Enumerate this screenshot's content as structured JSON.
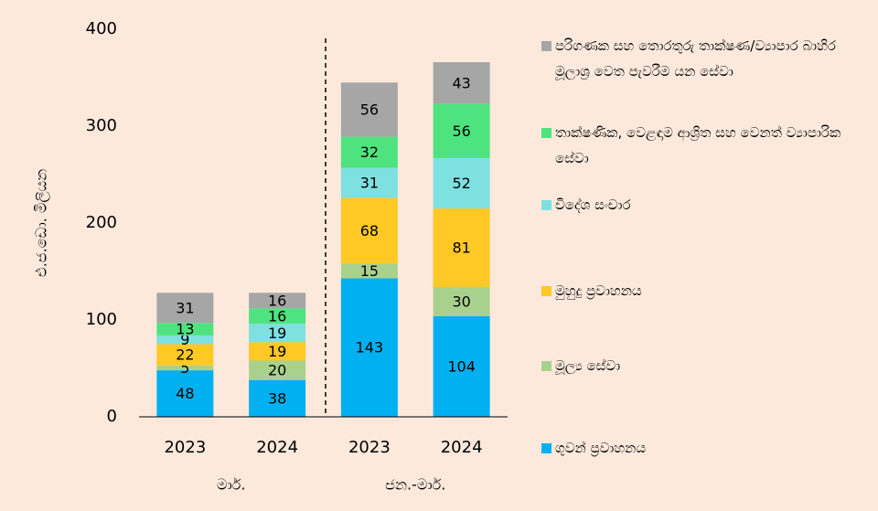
{
  "chart_data": {
    "type": "stacked_bar",
    "y_label": "එ.ජ.ඩො. මිලියන",
    "categories": [
      "2023",
      "2024",
      "2023",
      "2024"
    ],
    "groups": [
      "මාර්.",
      "ජන.-මාර්."
    ],
    "series": [
      {
        "name": "ගුවන් ප්‍රවාහනය",
        "color": "#00b0f0",
        "values": [
          48,
          38,
          143,
          104
        ]
      },
      {
        "name": "මූල්‍ය සේවා",
        "color": "#a9d18e",
        "values": [
          5,
          20,
          15,
          30
        ]
      },
      {
        "name": "මුහුදු ප්‍රවාහනය",
        "color": "#ffc825",
        "values": [
          22,
          19,
          68,
          81
        ]
      },
      {
        "name": "විදේශ සංචාර",
        "color": "#7fe0e0",
        "values": [
          9,
          19,
          31,
          52
        ]
      },
      {
        "name": "තාක්ෂණික, වෙළඳාම ආශ්‍රිත සහ වෙනත් ව්‍යාපාරික සේවා",
        "color": "#4ee37f",
        "values": [
          13,
          16,
          32,
          56
        ]
      },
      {
        "name": "පරිගණක සහ තොරතුරු තාක්ෂණ/ව්‍යාපාර බාහිර මූලාශ්‍ර වෙත පැවරීම යන සේවා",
        "color": "#a6a6a6",
        "values": [
          31,
          16,
          56,
          43
        ]
      }
    ],
    "ylim": [
      0,
      400
    ],
    "yticks": [
      0,
      100,
      200,
      300,
      400
    ],
    "grid": false,
    "legend": "right"
  }
}
